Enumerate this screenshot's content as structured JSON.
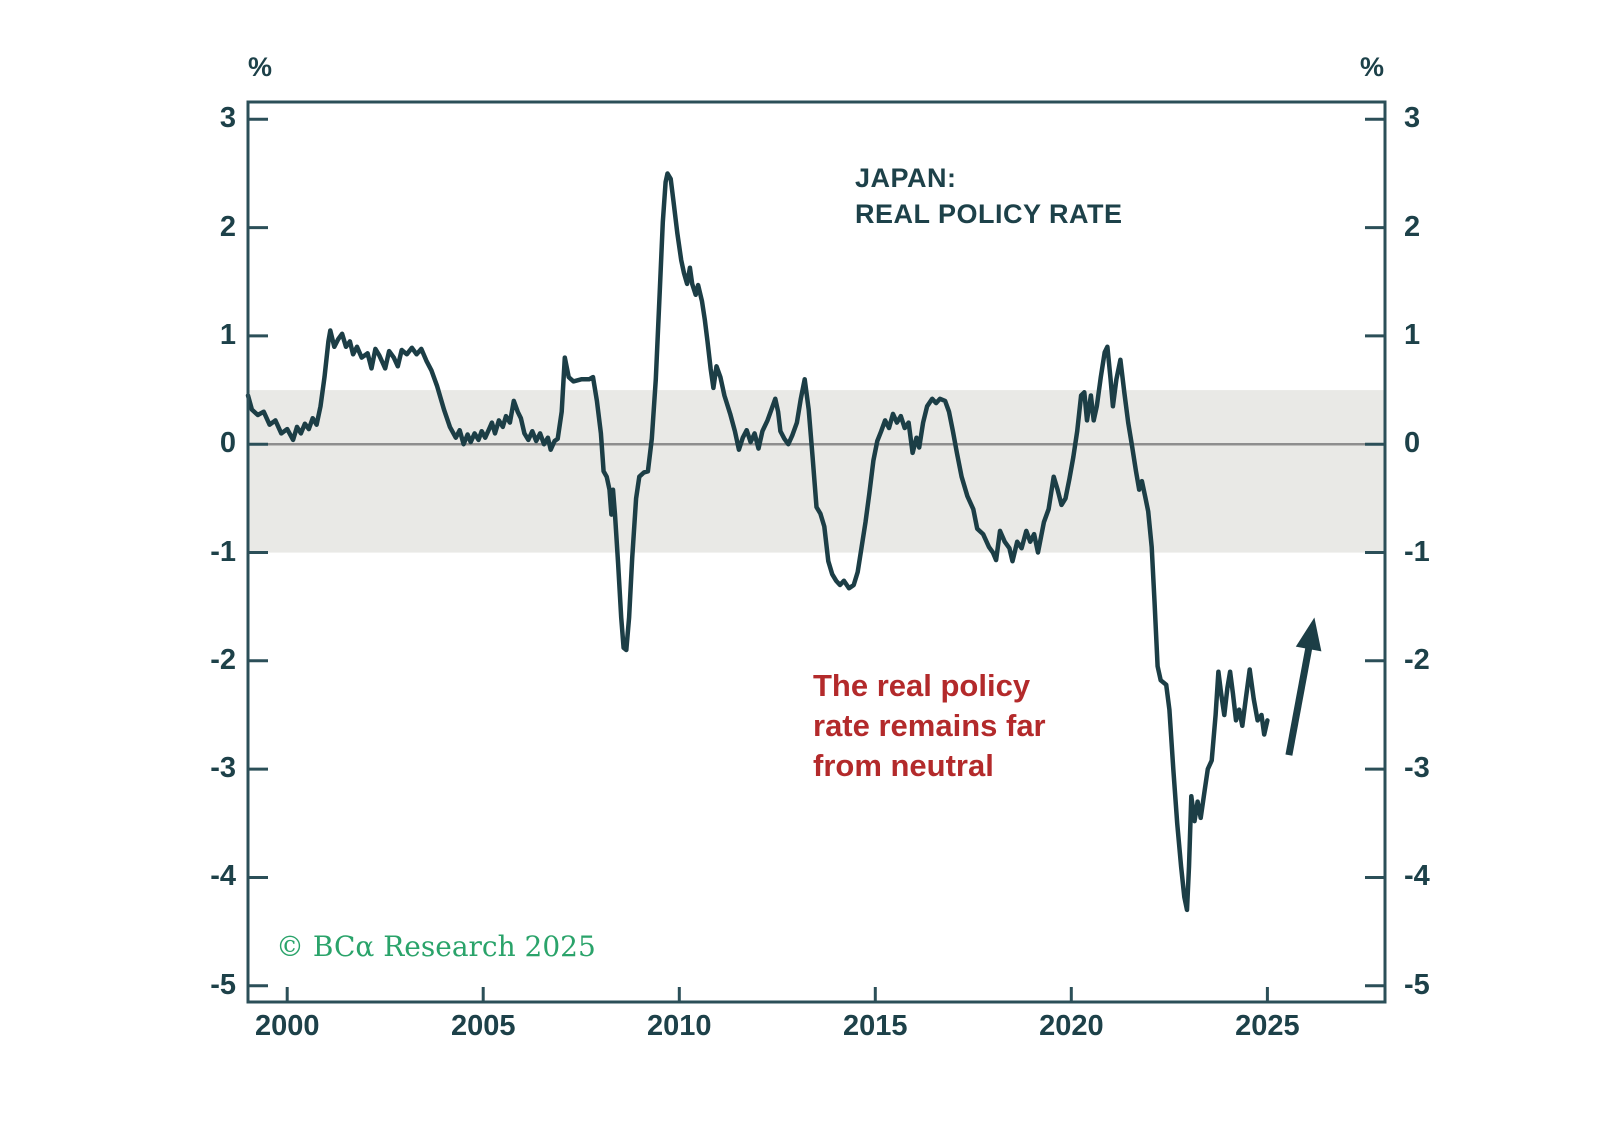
{
  "title": {
    "line1": "JAPAN:",
    "line2": "REAL POLICY RATE"
  },
  "annotation": {
    "line1": "The real policy",
    "line2": "rate remains far",
    "line3": "from neutral"
  },
  "copyright": {
    "text": "© BCα Research 2025"
  },
  "colors": {
    "line": "#1c3e46",
    "axis": "#2b4f58",
    "text": "#1d4149",
    "annotation_red": "#b32a2b",
    "copyright_green": "#2aa36a",
    "neutral_band": "#e9e9e6",
    "zero_line": "#8e8e8e",
    "background": "#ffffff"
  },
  "chart_data": {
    "type": "line",
    "title": "JAPAN: REAL POLICY RATE",
    "unit": "%",
    "x_range": [
      1999,
      2028
    ],
    "y_range": [
      -5.15,
      3.16
    ],
    "x_ticks": [
      2000,
      2005,
      2010,
      2015,
      2020,
      2025
    ],
    "y_ticks": [
      3,
      2,
      1,
      0,
      -1,
      -2,
      -3,
      -4,
      -5
    ],
    "grid": false,
    "legend": false,
    "zero_line": 0,
    "neutral_band": [
      -1.0,
      0.5
    ],
    "annotation_arrow": {
      "from": [
        2025.55,
        -2.87
      ],
      "to": [
        2026.2,
        -1.6
      ]
    },
    "series": [
      {
        "name": "Japan real policy rate",
        "points": [
          [
            1999.0,
            0.45
          ],
          [
            1999.1,
            0.32
          ],
          [
            1999.25,
            0.27
          ],
          [
            1999.4,
            0.3
          ],
          [
            1999.55,
            0.18
          ],
          [
            1999.7,
            0.22
          ],
          [
            1999.85,
            0.1
          ],
          [
            2000.0,
            0.14
          ],
          [
            2000.15,
            0.04
          ],
          [
            2000.25,
            0.16
          ],
          [
            2000.35,
            0.1
          ],
          [
            2000.45,
            0.19
          ],
          [
            2000.55,
            0.14
          ],
          [
            2000.65,
            0.24
          ],
          [
            2000.75,
            0.18
          ],
          [
            2000.85,
            0.35
          ],
          [
            2000.95,
            0.62
          ],
          [
            2001.05,
            0.95
          ],
          [
            2001.1,
            1.05
          ],
          [
            2001.2,
            0.9
          ],
          [
            2001.3,
            0.97
          ],
          [
            2001.4,
            1.02
          ],
          [
            2001.5,
            0.9
          ],
          [
            2001.6,
            0.95
          ],
          [
            2001.68,
            0.83
          ],
          [
            2001.78,
            0.9
          ],
          [
            2001.9,
            0.8
          ],
          [
            2002.05,
            0.84
          ],
          [
            2002.15,
            0.7
          ],
          [
            2002.25,
            0.88
          ],
          [
            2002.35,
            0.82
          ],
          [
            2002.5,
            0.7
          ],
          [
            2002.6,
            0.86
          ],
          [
            2002.72,
            0.8
          ],
          [
            2002.82,
            0.72
          ],
          [
            2002.92,
            0.87
          ],
          [
            2003.05,
            0.83
          ],
          [
            2003.18,
            0.89
          ],
          [
            2003.3,
            0.83
          ],
          [
            2003.42,
            0.88
          ],
          [
            2003.55,
            0.77
          ],
          [
            2003.68,
            0.68
          ],
          [
            2003.82,
            0.54
          ],
          [
            2004.0,
            0.32
          ],
          [
            2004.15,
            0.16
          ],
          [
            2004.3,
            0.06
          ],
          [
            2004.4,
            0.13
          ],
          [
            2004.5,
            0.0
          ],
          [
            2004.6,
            0.09
          ],
          [
            2004.68,
            0.02
          ],
          [
            2004.78,
            0.1
          ],
          [
            2004.88,
            0.04
          ],
          [
            2004.96,
            0.12
          ],
          [
            2005.05,
            0.06
          ],
          [
            2005.15,
            0.14
          ],
          [
            2005.22,
            0.2
          ],
          [
            2005.3,
            0.1
          ],
          [
            2005.4,
            0.22
          ],
          [
            2005.5,
            0.16
          ],
          [
            2005.58,
            0.26
          ],
          [
            2005.68,
            0.2
          ],
          [
            2005.78,
            0.4
          ],
          [
            2005.88,
            0.3
          ],
          [
            2005.96,
            0.24
          ],
          [
            2006.05,
            0.1
          ],
          [
            2006.15,
            0.04
          ],
          [
            2006.25,
            0.12
          ],
          [
            2006.35,
            0.03
          ],
          [
            2006.45,
            0.1
          ],
          [
            2006.55,
            0.0
          ],
          [
            2006.65,
            0.06
          ],
          [
            2006.72,
            -0.05
          ],
          [
            2006.82,
            0.03
          ],
          [
            2006.9,
            0.05
          ],
          [
            2007.0,
            0.3
          ],
          [
            2007.08,
            0.8
          ],
          [
            2007.18,
            0.62
          ],
          [
            2007.3,
            0.58
          ],
          [
            2007.5,
            0.6
          ],
          [
            2007.7,
            0.6
          ],
          [
            2007.8,
            0.62
          ],
          [
            2007.9,
            0.4
          ],
          [
            2008.0,
            0.1
          ],
          [
            2008.07,
            -0.25
          ],
          [
            2008.15,
            -0.3
          ],
          [
            2008.22,
            -0.42
          ],
          [
            2008.27,
            -0.65
          ],
          [
            2008.31,
            -0.42
          ],
          [
            2008.36,
            -0.65
          ],
          [
            2008.44,
            -1.1
          ],
          [
            2008.52,
            -1.6
          ],
          [
            2008.58,
            -1.88
          ],
          [
            2008.65,
            -1.9
          ],
          [
            2008.72,
            -1.6
          ],
          [
            2008.8,
            -1.05
          ],
          [
            2008.9,
            -0.5
          ],
          [
            2008.98,
            -0.3
          ],
          [
            2009.1,
            -0.26
          ],
          [
            2009.2,
            -0.25
          ],
          [
            2009.3,
            0.05
          ],
          [
            2009.4,
            0.6
          ],
          [
            2009.5,
            1.4
          ],
          [
            2009.58,
            2.05
          ],
          [
            2009.65,
            2.42
          ],
          [
            2009.7,
            2.5
          ],
          [
            2009.78,
            2.45
          ],
          [
            2009.85,
            2.25
          ],
          [
            2009.95,
            1.95
          ],
          [
            2010.05,
            1.7
          ],
          [
            2010.12,
            1.58
          ],
          [
            2010.2,
            1.48
          ],
          [
            2010.27,
            1.63
          ],
          [
            2010.33,
            1.48
          ],
          [
            2010.42,
            1.38
          ],
          [
            2010.48,
            1.47
          ],
          [
            2010.58,
            1.32
          ],
          [
            2010.65,
            1.15
          ],
          [
            2010.72,
            0.95
          ],
          [
            2010.8,
            0.7
          ],
          [
            2010.87,
            0.52
          ],
          [
            2010.95,
            0.72
          ],
          [
            2011.05,
            0.62
          ],
          [
            2011.15,
            0.45
          ],
          [
            2011.3,
            0.28
          ],
          [
            2011.42,
            0.12
          ],
          [
            2011.52,
            -0.05
          ],
          [
            2011.62,
            0.06
          ],
          [
            2011.72,
            0.13
          ],
          [
            2011.82,
            0.02
          ],
          [
            2011.92,
            0.1
          ],
          [
            2012.02,
            -0.04
          ],
          [
            2012.12,
            0.12
          ],
          [
            2012.25,
            0.22
          ],
          [
            2012.35,
            0.32
          ],
          [
            2012.45,
            0.42
          ],
          [
            2012.52,
            0.3
          ],
          [
            2012.58,
            0.12
          ],
          [
            2012.68,
            0.05
          ],
          [
            2012.78,
            0.0
          ],
          [
            2012.88,
            0.08
          ],
          [
            2013.0,
            0.2
          ],
          [
            2013.1,
            0.42
          ],
          [
            2013.2,
            0.6
          ],
          [
            2013.3,
            0.32
          ],
          [
            2013.4,
            -0.12
          ],
          [
            2013.5,
            -0.58
          ],
          [
            2013.6,
            -0.64
          ],
          [
            2013.7,
            -0.76
          ],
          [
            2013.8,
            -1.08
          ],
          [
            2013.9,
            -1.2
          ],
          [
            2014.0,
            -1.26
          ],
          [
            2014.1,
            -1.3
          ],
          [
            2014.2,
            -1.26
          ],
          [
            2014.33,
            -1.33
          ],
          [
            2014.45,
            -1.3
          ],
          [
            2014.55,
            -1.18
          ],
          [
            2014.65,
            -0.95
          ],
          [
            2014.75,
            -0.72
          ],
          [
            2014.85,
            -0.45
          ],
          [
            2014.95,
            -0.15
          ],
          [
            2015.05,
            0.03
          ],
          [
            2015.15,
            0.12
          ],
          [
            2015.25,
            0.22
          ],
          [
            2015.35,
            0.15
          ],
          [
            2015.45,
            0.28
          ],
          [
            2015.55,
            0.2
          ],
          [
            2015.65,
            0.26
          ],
          [
            2015.75,
            0.15
          ],
          [
            2015.85,
            0.2
          ],
          [
            2015.95,
            -0.08
          ],
          [
            2016.05,
            0.06
          ],
          [
            2016.12,
            -0.03
          ],
          [
            2016.22,
            0.2
          ],
          [
            2016.32,
            0.35
          ],
          [
            2016.45,
            0.42
          ],
          [
            2016.55,
            0.38
          ],
          [
            2016.65,
            0.42
          ],
          [
            2016.78,
            0.4
          ],
          [
            2016.88,
            0.3
          ],
          [
            2016.98,
            0.12
          ],
          [
            2017.08,
            -0.08
          ],
          [
            2017.2,
            -0.3
          ],
          [
            2017.35,
            -0.48
          ],
          [
            2017.5,
            -0.6
          ],
          [
            2017.6,
            -0.78
          ],
          [
            2017.75,
            -0.83
          ],
          [
            2017.9,
            -0.95
          ],
          [
            2018.0,
            -1.0
          ],
          [
            2018.08,
            -1.07
          ],
          [
            2018.18,
            -0.8
          ],
          [
            2018.3,
            -0.9
          ],
          [
            2018.42,
            -0.96
          ],
          [
            2018.5,
            -1.08
          ],
          [
            2018.62,
            -0.9
          ],
          [
            2018.73,
            -0.96
          ],
          [
            2018.85,
            -0.8
          ],
          [
            2018.95,
            -0.9
          ],
          [
            2019.05,
            -0.83
          ],
          [
            2019.15,
            -1.0
          ],
          [
            2019.3,
            -0.72
          ],
          [
            2019.42,
            -0.6
          ],
          [
            2019.55,
            -0.3
          ],
          [
            2019.65,
            -0.42
          ],
          [
            2019.75,
            -0.56
          ],
          [
            2019.85,
            -0.5
          ],
          [
            2019.95,
            -0.32
          ],
          [
            2020.05,
            -0.12
          ],
          [
            2020.15,
            0.12
          ],
          [
            2020.25,
            0.45
          ],
          [
            2020.33,
            0.48
          ],
          [
            2020.4,
            0.22
          ],
          [
            2020.5,
            0.45
          ],
          [
            2020.57,
            0.22
          ],
          [
            2020.65,
            0.35
          ],
          [
            2020.75,
            0.62
          ],
          [
            2020.85,
            0.85
          ],
          [
            2020.92,
            0.9
          ],
          [
            2021.0,
            0.6
          ],
          [
            2021.06,
            0.35
          ],
          [
            2021.15,
            0.6
          ],
          [
            2021.25,
            0.78
          ],
          [
            2021.35,
            0.48
          ],
          [
            2021.45,
            0.2
          ],
          [
            2021.55,
            -0.02
          ],
          [
            2021.65,
            -0.25
          ],
          [
            2021.73,
            -0.42
          ],
          [
            2021.8,
            -0.34
          ],
          [
            2021.88,
            -0.48
          ],
          [
            2021.96,
            -0.62
          ],
          [
            2022.05,
            -0.95
          ],
          [
            2022.12,
            -1.45
          ],
          [
            2022.2,
            -2.05
          ],
          [
            2022.28,
            -2.18
          ],
          [
            2022.42,
            -2.22
          ],
          [
            2022.5,
            -2.45
          ],
          [
            2022.6,
            -3.0
          ],
          [
            2022.7,
            -3.5
          ],
          [
            2022.8,
            -3.9
          ],
          [
            2022.88,
            -4.18
          ],
          [
            2022.95,
            -4.3
          ],
          [
            2023.0,
            -3.9
          ],
          [
            2023.06,
            -3.25
          ],
          [
            2023.14,
            -3.48
          ],
          [
            2023.22,
            -3.3
          ],
          [
            2023.3,
            -3.45
          ],
          [
            2023.4,
            -3.2
          ],
          [
            2023.48,
            -3.0
          ],
          [
            2023.58,
            -2.92
          ],
          [
            2023.68,
            -2.5
          ],
          [
            2023.75,
            -2.1
          ],
          [
            2023.82,
            -2.3
          ],
          [
            2023.9,
            -2.5
          ],
          [
            2023.98,
            -2.25
          ],
          [
            2024.05,
            -2.1
          ],
          [
            2024.12,
            -2.3
          ],
          [
            2024.2,
            -2.55
          ],
          [
            2024.28,
            -2.45
          ],
          [
            2024.36,
            -2.6
          ],
          [
            2024.45,
            -2.35
          ],
          [
            2024.55,
            -2.08
          ],
          [
            2024.65,
            -2.35
          ],
          [
            2024.75,
            -2.55
          ],
          [
            2024.85,
            -2.5
          ],
          [
            2024.92,
            -2.68
          ],
          [
            2025.0,
            -2.55
          ]
        ]
      }
    ]
  }
}
